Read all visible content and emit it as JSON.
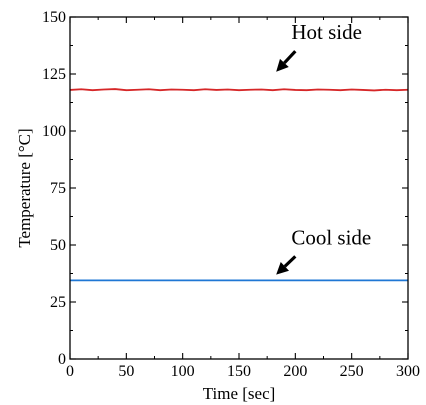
{
  "chart_data": {
    "type": "line",
    "title": "",
    "xlabel": "Time [sec]",
    "ylabel": "Temperature [°C]",
    "xlim": [
      0,
      300
    ],
    "ylim": [
      0,
      150
    ],
    "x_ticks": [
      "0",
      "50",
      "100",
      "150",
      "200",
      "250",
      "300"
    ],
    "y_ticks": [
      "0",
      "25",
      "50",
      "75",
      "100",
      "125",
      "150"
    ],
    "grid": false,
    "series": [
      {
        "color": "#d62728",
        "x": [
          0,
          10,
          20,
          30,
          40,
          50,
          60,
          70,
          80,
          90,
          100,
          110,
          120,
          130,
          140,
          150,
          160,
          170,
          180,
          190,
          200,
          210,
          220,
          230,
          240,
          250,
          260,
          270,
          280,
          290,
          300
        ],
        "y": [
          118,
          118.3,
          117.9,
          118.2,
          118.4,
          117.9,
          118.1,
          118.3,
          117.9,
          118.2,
          118.1,
          117.9,
          118.3,
          118.0,
          118.2,
          117.9,
          118.1,
          118.2,
          117.9,
          118.3,
          118.0,
          117.9,
          118.2,
          118.1,
          117.9,
          118.2,
          118.0,
          117.8,
          118.1,
          117.9,
          118.1
        ]
      },
      {
        "color": "#1f77d4",
        "x": [
          0,
          50,
          100,
          150,
          200,
          250,
          300
        ],
        "y": [
          34.5,
          34.5,
          34.5,
          34.5,
          34.5,
          34.5,
          34.5
        ]
      }
    ],
    "annotations": [
      {
        "text": "Hot side",
        "x": 183,
        "y": 126,
        "tail_x": 200,
        "tail_y": 135
      },
      {
        "text": "Cool side",
        "x": 183,
        "y": 37,
        "tail_x": 200,
        "tail_y": 45
      }
    ]
  }
}
